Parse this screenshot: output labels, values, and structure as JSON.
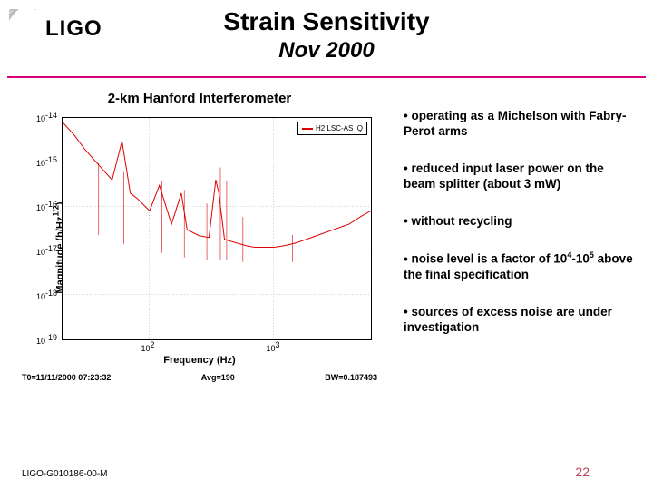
{
  "logo": {
    "text": "LIGO"
  },
  "title": "Strain Sensitivity",
  "subtitle": "Nov 2000",
  "accent_color": "#d6007f",
  "chart": {
    "heading": "2-km Hanford Interferometer",
    "type": "line",
    "xlabel": "Frequency (Hz)",
    "ylabel": "Magnitude (h/Hz^1/2)",
    "series_color": "#dd0000",
    "background_color": "#ffffff",
    "grid_color": "#c0c0c0",
    "legend_label": "H2:LSC-AS_Q",
    "xscale": "log",
    "yscale": "log",
    "xlim": [
      20,
      6000
    ],
    "ylim": [
      1e-19,
      1e-14
    ],
    "xticks": [
      100,
      1000
    ],
    "xtick_labels": [
      "10^2",
      "10^3"
    ],
    "yticks": [
      1e-19,
      1e-18,
      1e-17,
      1e-16,
      1e-15,
      1e-14
    ],
    "ytick_labels": [
      "10^-19",
      "10^-18",
      "10^-17",
      "10^-16",
      "10^-15",
      "10^-14"
    ],
    "data": {
      "freq": [
        20,
        25,
        30,
        40,
        50,
        60,
        70,
        80,
        100,
        120,
        150,
        180,
        200,
        250,
        300,
        340,
        360,
        400,
        500,
        600,
        700,
        800,
        1000,
        1200,
        1500,
        2000,
        3000,
        4000,
        5000,
        6000
      ],
      "mag": [
        8e-15,
        4e-15,
        2e-15,
        8e-16,
        4e-16,
        3e-15,
        2e-16,
        1.5e-16,
        8e-17,
        3e-16,
        4e-17,
        2e-16,
        3e-17,
        2.2e-17,
        2e-17,
        4e-16,
        2e-16,
        1.8e-17,
        1.5e-17,
        1.3e-17,
        1.2e-17,
        1.2e-17,
        1.2e-17,
        1.3e-17,
        1.5e-17,
        2e-17,
        3e-17,
        4e-17,
        6e-17,
        8e-17
      ]
    },
    "footer": {
      "t0": "T0=11/11/2000 07:23:32",
      "avg": "Avg=190",
      "bw": "BW=0.187493"
    },
    "line_width": 1,
    "title_fontsize": 15,
    "label_fontsize": 11
  },
  "bullets": [
    "operating as a Michelson with Fabry-Perot arms",
    "reduced input laser power on the beam splitter (about 3 mW)",
    "without recycling",
    "noise level is a factor of 10^4-10^5 above the final specification",
    "sources of excess noise are under investigation"
  ],
  "footer_id": "LIGO-G010186-00-M",
  "page_number": "22"
}
